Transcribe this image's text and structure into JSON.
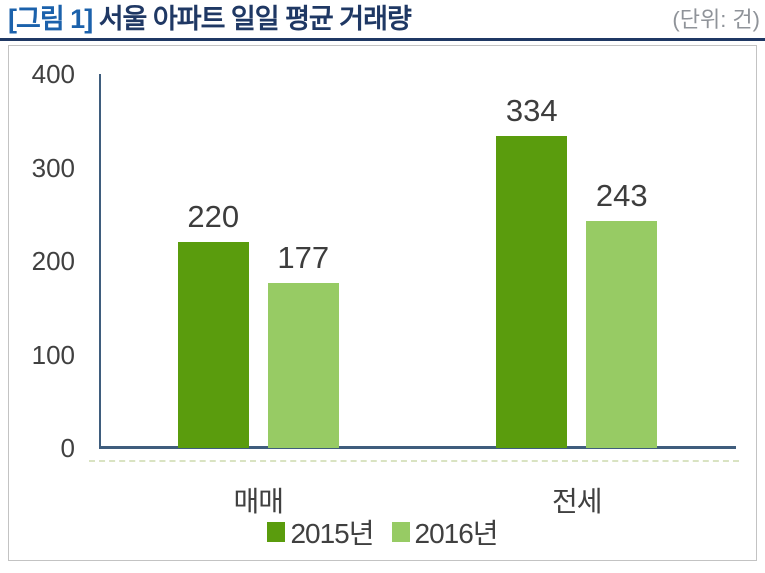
{
  "header": {
    "title_prefix": "[그림 1]",
    "title_main": "서울 아파트 일일 평균 거래량",
    "unit_label": "(단위: 건)"
  },
  "chart_data": {
    "type": "bar",
    "title": "서울 아파트 일일 평균 거래량",
    "unit": "건",
    "categories": [
      "매매",
      "전세"
    ],
    "series": [
      {
        "name": "2015년",
        "color": "#5a9c0d",
        "values": [
          220,
          334
        ]
      },
      {
        "name": "2016년",
        "color": "#97cb64",
        "values": [
          177,
          243
        ]
      }
    ],
    "ylim": [
      0,
      400
    ],
    "yticks": [
      0,
      100,
      200,
      300,
      400
    ],
    "grid": false,
    "data_labels": true,
    "legend_position": "bottom"
  },
  "colors": {
    "series_2015": "#5a9c0d",
    "series_2016": "#97cb64",
    "axis_line": "#3f5d7d",
    "title_prefix": "#1b61ab",
    "title_main": "#1f3864",
    "title_rule": "#1f3864",
    "unit_text": "#8f9399",
    "frame_border": "#c3c3c3",
    "tick_text": "#404040"
  }
}
